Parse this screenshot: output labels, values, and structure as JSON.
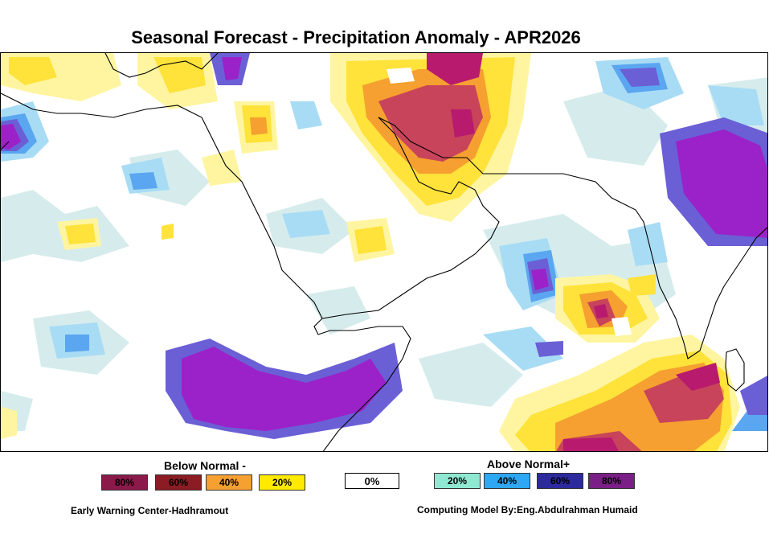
{
  "title": "Seasonal Forecast - Precipitation Anomaly - APR2026",
  "legend": {
    "below_label": "Below Normal -",
    "above_label": "Above Normal+",
    "below": [
      {
        "label": "80%",
        "color": "#8b1a4a"
      },
      {
        "label": "60%",
        "color": "#8b1c24"
      },
      {
        "label": "40%",
        "color": "#f5a030"
      },
      {
        "label": "20%",
        "color": "#ffea00"
      }
    ],
    "zero": {
      "label": "0%",
      "color": "#ffffff"
    },
    "above": [
      {
        "label": "20%",
        "color": "#8fe8d2"
      },
      {
        "label": "40%",
        "color": "#2ea8f5"
      },
      {
        "label": "60%",
        "color": "#2c2a9c"
      },
      {
        "label": "80%",
        "color": "#7a1f86"
      }
    ]
  },
  "footer": {
    "left": "Early Warning Center-Hadhramout",
    "right": "Computing Model By:Eng.Abdulrahman Humaid"
  },
  "map_colors": {
    "light_cyan": "#d6ecec",
    "sky": "#a8dcf5",
    "blue": "#5aa6f0",
    "indigo": "#6b5fd6",
    "purple": "#9b22c8",
    "pale_yellow": "#fff5a0",
    "yellow": "#ffe23a",
    "orange": "#f5a030",
    "red": "#c8445a",
    "magenta": "#b81a6e"
  }
}
